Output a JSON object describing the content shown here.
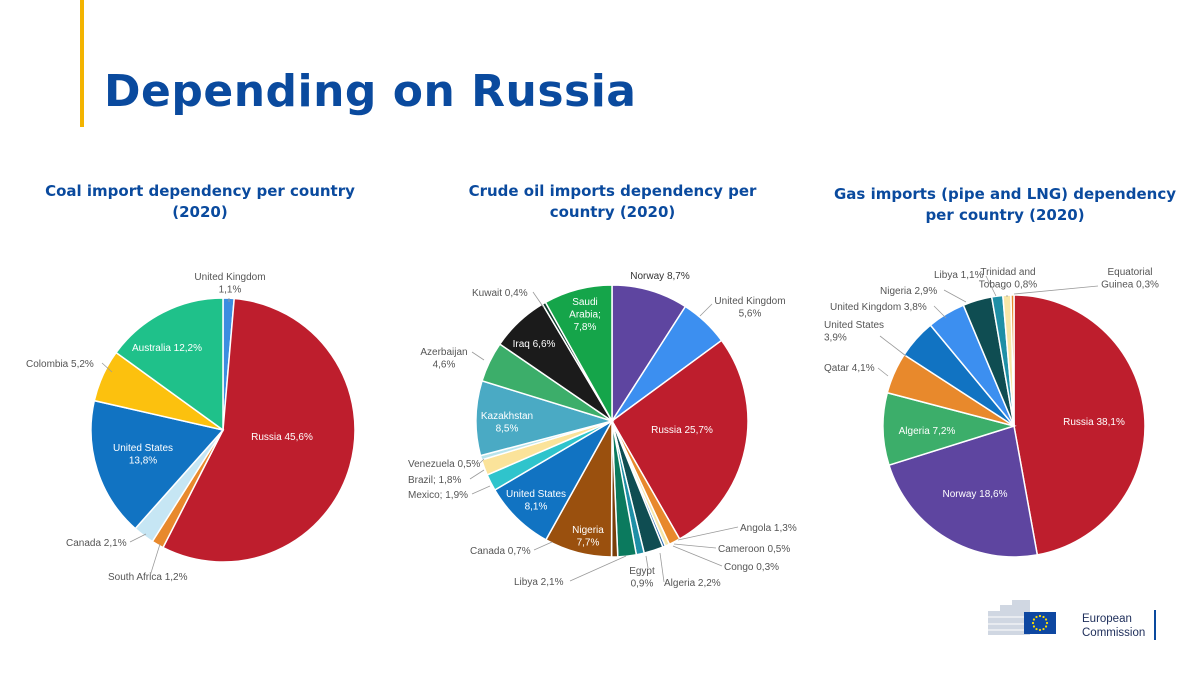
{
  "slide": {
    "title": "Depending on Russia",
    "accent_color": "#f3b400",
    "title_color": "#0a4a9e"
  },
  "logo": {
    "line1": "European",
    "line2": "Commission",
    "flag_color": "#0e47a1",
    "star_color": "#ffdd00"
  },
  "chart_data": [
    {
      "type": "pie",
      "title": "Coal import dependency per country (2020)",
      "title_lines": [
        "Coal import dependency per country",
        "(2020)"
      ],
      "slices": [
        {
          "label": "United Kingdom 1,1%",
          "value": 1.1,
          "color": "#3b8de0"
        },
        {
          "label": "Russia 45,6%",
          "value": 45.6,
          "color": "#be1e2d"
        },
        {
          "label": "South Africa 1,2%",
          "value": 1.2,
          "color": "#e8892c"
        },
        {
          "label": "Canada 2,1%",
          "value": 2.1,
          "color": "#c6e6f4"
        },
        {
          "label": "United States 13,8%",
          "value": 13.8,
          "color": "#1173c2"
        },
        {
          "label": "Colombia 5,2%",
          "value": 5.2,
          "color": "#fcc10e"
        },
        {
          "label": "Australia 12,2%",
          "value": 12.2,
          "color": "#1fc18a"
        }
      ]
    },
    {
      "type": "pie",
      "title": "Crude oil imports dependency per country (2020)",
      "title_lines": [
        "Crude oil imports dependency per",
        "country (2020)"
      ],
      "slices": [
        {
          "label": "Norway 8,7%",
          "value": 8.7,
          "color": "#5e45a0"
        },
        {
          "label": "United Kingdom 5,6%",
          "value": 5.6,
          "color": "#3c8ff0"
        },
        {
          "label": "Russia 25,7%",
          "value": 25.7,
          "color": "#be1e2d"
        },
        {
          "label": "Angola 1,3%",
          "value": 1.3,
          "color": "#e8892c"
        },
        {
          "label": "Cameroon 0,5%",
          "value": 0.5,
          "color": "#f6e6a8"
        },
        {
          "label": "Congo 0,3%",
          "value": 0.3,
          "color": "#2b6cb0"
        },
        {
          "label": "Algeria 2,2%",
          "value": 2.2,
          "color": "#0f4d52"
        },
        {
          "label": "Egypt 0,9%",
          "value": 0.9,
          "color": "#1e8fa6"
        },
        {
          "label": "Libya 2,1%",
          "value": 2.1,
          "color": "#0b7a5e"
        },
        {
          "label": "Canada 0,7%",
          "value": 0.7,
          "color": "#7a3e0a"
        },
        {
          "label": "Nigeria 7,7%",
          "value": 7.7,
          "color": "#9a500e"
        },
        {
          "label": "United States 8,1%",
          "value": 8.1,
          "color": "#1173c2"
        },
        {
          "label": "Mexico; 1,9%",
          "value": 1.9,
          "color": "#2fc4cc"
        },
        {
          "label": "Brazil; 1,8%",
          "value": 1.8,
          "color": "#fbe39a"
        },
        {
          "label": "Venezuela 0,5%",
          "value": 0.5,
          "color": "#b8e4ec"
        },
        {
          "label": "Kazakhstan 8,5%",
          "value": 8.5,
          "color": "#4aaac4"
        },
        {
          "label": "Azerbaijan 4,6%",
          "value": 4.6,
          "color": "#3cae6a"
        },
        {
          "label": "Iraq 6,6%",
          "value": 6.6,
          "color": "#1b1b1b"
        },
        {
          "label": "Kuwait 0,4%",
          "value": 0.4,
          "color": "#0f3a2a"
        },
        {
          "label": "Saudi Arabia; 7,8%",
          "value": 7.8,
          "color": "#15a54a"
        }
      ]
    },
    {
      "type": "pie",
      "title": "Gas imports (pipe and LNG) dependency per country (2020)",
      "title_lines": [
        "Gas imports (pipe and LNG) dependency",
        "per country (2020)"
      ],
      "slices": [
        {
          "label": "Russia 38,1%",
          "value": 38.1,
          "color": "#be1e2d"
        },
        {
          "label": "Norway 18,6%",
          "value": 18.6,
          "color": "#5e45a0"
        },
        {
          "label": "Algeria 7,2%",
          "value": 7.2,
          "color": "#3cae6a"
        },
        {
          "label": "Qatar 4,1%",
          "value": 4.1,
          "color": "#e8892c"
        },
        {
          "label": "United States 3,9%",
          "value": 3.9,
          "color": "#1173c2"
        },
        {
          "label": "United Kingdom 3,8%",
          "value": 3.8,
          "color": "#3c8ff0"
        },
        {
          "label": "Nigeria 2,9%",
          "value": 2.9,
          "color": "#0f4d52"
        },
        {
          "label": "Libya 1,1%",
          "value": 1.1,
          "color": "#1e8fa6"
        },
        {
          "label": "Trinidad and Tobago 0,8%",
          "value": 0.8,
          "color": "#f6e6a8"
        },
        {
          "label": "Equatorial Guinea 0,3%",
          "value": 0.3,
          "color": "#e8892c"
        }
      ]
    }
  ]
}
